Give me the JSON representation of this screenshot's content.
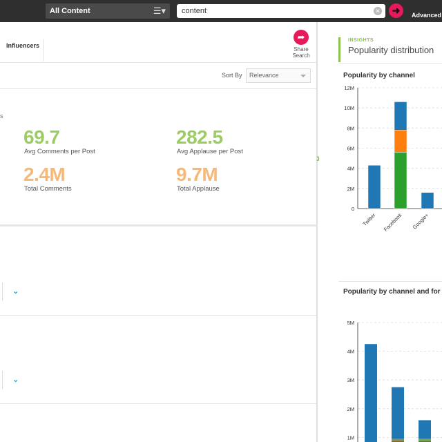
{
  "topbar": {
    "filter_value": "All Content",
    "search_value": "content",
    "advanced_label": "Advanced"
  },
  "tabs": {
    "influencers": "Influencers"
  },
  "share": {
    "line1": "Share",
    "line2": "Search"
  },
  "sort": {
    "label": "Sort By",
    "value": "Relevance"
  },
  "cut_text": "s",
  "stats": [
    {
      "value": "69.7",
      "label": "Avg Comments per Post"
    },
    {
      "value": "282.5",
      "label": "Avg Applause per Post"
    },
    {
      "value": "2.4M",
      "label": "Total Comments"
    },
    {
      "value": "9.7M",
      "label": "Total Applause"
    }
  ],
  "insights": {
    "kicker": "INSIGHTS",
    "title": "Popularity distribution"
  },
  "colors": {
    "twitter_blue": "#1f77b4",
    "orange": "#ff7f0e",
    "green": "#2ca02c",
    "accent_pink": "#e8195a",
    "accent_green": "#8bc34a"
  },
  "chart_data": [
    {
      "type": "bar",
      "title": "Popularity by channel",
      "stacked": true,
      "categories": [
        "Twitter",
        "Facebook",
        "Google+"
      ],
      "ylim": [
        0,
        12000000
      ],
      "yticks": [
        0,
        2000000,
        4000000,
        6000000,
        8000000,
        10000000,
        12000000
      ],
      "ytick_labels": [
        "0",
        "2M",
        "4M",
        "6M",
        "8M",
        "10M",
        "12M"
      ],
      "series": [
        {
          "color": "#2ca02c",
          "values": [
            0,
            5600000,
            0
          ]
        },
        {
          "color": "#ff7f0e",
          "values": [
            0,
            2200000,
            0
          ]
        },
        {
          "color": "#1f77b4",
          "values": [
            4300000,
            2800000,
            1600000
          ]
        }
      ],
      "grid": true
    },
    {
      "type": "bar",
      "title": "Popularity by channel and for",
      "stacked": true,
      "ylim": [
        0,
        5000000
      ],
      "yticks": [
        1000000,
        2000000,
        3000000,
        4000000,
        5000000
      ],
      "ytick_labels": [
        "1M",
        "2M",
        "3M",
        "4M",
        "5M"
      ],
      "bars": [
        {
          "total": 4250000
        },
        {
          "total": 2750000
        },
        {
          "total": 1600000
        }
      ],
      "grid": true
    }
  ]
}
